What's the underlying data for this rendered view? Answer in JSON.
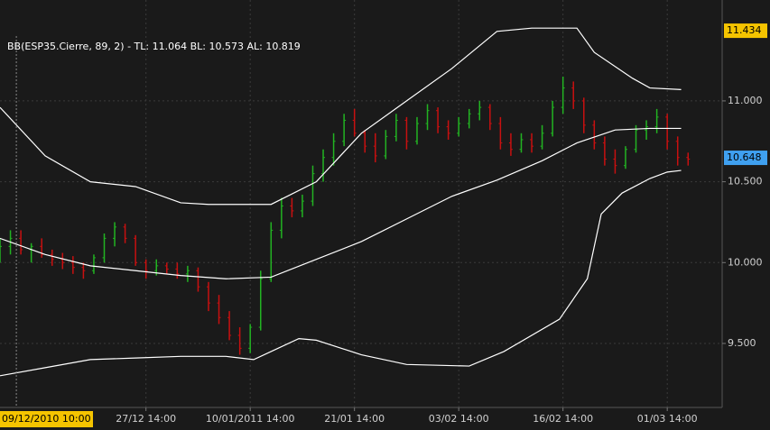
{
  "chart_data": {
    "type": "ohlc",
    "legend_text": "BB(ESP35.Cierre, 89, 2) -  TL: 11.064  BL: 10.573  AL: 10.819",
    "up_color": "#22b322",
    "down_color": "#c81010",
    "band_color": "#ffffff",
    "xlim": [
      0,
      207.8
    ],
    "ylim": [
      9.104,
      11.624
    ],
    "yticks": [
      {
        "value": 9.5,
        "label": "9.500"
      },
      {
        "value": 10,
        "label": "10.000"
      },
      {
        "value": 10.5,
        "label": "10.500"
      },
      {
        "value": 11,
        "label": "11.000"
      }
    ],
    "xticks": [
      {
        "value": 42,
        "label": "27/12 14:00"
      },
      {
        "value": 72,
        "label": "10/01/2011 14:00"
      },
      {
        "value": 102,
        "label": "21/01 14:00"
      },
      {
        "value": 132,
        "label": "03/02 14:00"
      },
      {
        "value": 162,
        "label": "16/02 14:00"
      },
      {
        "value": 192,
        "label": "01/03 14:00"
      }
    ],
    "cursor": {
      "x": 4.7,
      "label": "09/12/2010 10:00",
      "color": "#f5c400"
    },
    "markers": [
      {
        "value": 11.434,
        "color": "#f5c400"
      },
      {
        "value": 10.648,
        "color": "#3fa0f0"
      }
    ],
    "grid": true,
    "bars": {
      "x": [
        0,
        3,
        6,
        9,
        12,
        15,
        18,
        21,
        24,
        27,
        30,
        33,
        36,
        39,
        42,
        45,
        48,
        51,
        54,
        57,
        60,
        63,
        66,
        69,
        72,
        75,
        78,
        81,
        84,
        87,
        90,
        93,
        96,
        99,
        102,
        105,
        108,
        111,
        114,
        117,
        120,
        123,
        126,
        129,
        132,
        135,
        138,
        141,
        144,
        147,
        150,
        153,
        156,
        159,
        162,
        165,
        168,
        171,
        174,
        177,
        180,
        183,
        186,
        189,
        192,
        195,
        198
      ],
      "open": [
        10.05,
        10.1,
        10.15,
        10.08,
        10.1,
        10.05,
        10.02,
        10.0,
        9.97,
        9.95,
        10.03,
        10.15,
        10.22,
        10.15,
        10.0,
        9.95,
        9.98,
        9.96,
        9.93,
        9.95,
        9.85,
        9.75,
        9.66,
        9.55,
        9.47,
        9.6,
        9.9,
        10.2,
        10.35,
        10.32,
        10.38,
        10.55,
        10.65,
        10.75,
        10.88,
        10.8,
        10.72,
        10.66,
        10.78,
        10.88,
        10.75,
        10.86,
        10.94,
        10.84,
        10.8,
        10.86,
        10.92,
        10.96,
        10.86,
        10.74,
        10.7,
        10.76,
        10.72,
        10.8,
        10.96,
        11.08,
        11.0,
        10.85,
        10.74,
        10.64,
        10.6,
        10.7,
        10.82,
        10.84,
        10.9,
        10.75,
        10.65
      ],
      "high": [
        10.15,
        10.2,
        10.2,
        10.12,
        10.15,
        10.08,
        10.06,
        10.04,
        10.0,
        10.05,
        10.18,
        10.25,
        10.24,
        10.17,
        10.02,
        10.02,
        10.0,
        10.0,
        9.98,
        9.97,
        9.88,
        9.8,
        9.7,
        9.6,
        9.62,
        9.95,
        10.25,
        10.4,
        10.4,
        10.42,
        10.6,
        10.7,
        10.8,
        10.92,
        10.95,
        10.82,
        10.8,
        10.82,
        10.92,
        10.9,
        10.9,
        10.98,
        10.96,
        10.88,
        10.9,
        10.95,
        11.0,
        10.98,
        10.9,
        10.8,
        10.8,
        10.8,
        10.85,
        11.0,
        11.15,
        11.12,
        11.02,
        10.88,
        10.78,
        10.7,
        10.72,
        10.85,
        10.88,
        10.95,
        10.92,
        10.78,
        10.68
      ],
      "low": [
        10.0,
        10.05,
        10.05,
        10.0,
        10.03,
        9.98,
        9.96,
        9.93,
        9.9,
        9.93,
        10.0,
        10.1,
        10.12,
        9.98,
        9.9,
        9.92,
        9.93,
        9.9,
        9.88,
        9.82,
        9.7,
        9.62,
        9.52,
        9.43,
        9.44,
        9.58,
        9.88,
        10.15,
        10.28,
        10.28,
        10.35,
        10.5,
        10.6,
        10.72,
        10.78,
        10.68,
        10.62,
        10.64,
        10.75,
        10.7,
        10.73,
        10.82,
        10.8,
        10.76,
        10.78,
        10.83,
        10.88,
        10.82,
        10.7,
        10.66,
        10.68,
        10.68,
        10.7,
        10.78,
        10.92,
        10.95,
        10.8,
        10.7,
        10.6,
        10.55,
        10.58,
        10.68,
        10.76,
        10.8,
        10.7,
        10.6,
        10.6
      ],
      "close": [
        10.1,
        10.15,
        10.08,
        10.1,
        10.05,
        10.02,
        10.0,
        9.97,
        9.95,
        10.03,
        10.15,
        10.22,
        10.15,
        10.0,
        9.95,
        9.98,
        9.96,
        9.93,
        9.95,
        9.85,
        9.75,
        9.66,
        9.55,
        9.47,
        9.6,
        9.9,
        10.2,
        10.35,
        10.32,
        10.38,
        10.55,
        10.65,
        10.75,
        10.88,
        10.8,
        10.72,
        10.66,
        10.78,
        10.88,
        10.75,
        10.86,
        10.94,
        10.84,
        10.8,
        10.86,
        10.92,
        10.96,
        10.86,
        10.74,
        10.7,
        10.76,
        10.72,
        10.8,
        10.96,
        11.08,
        11.0,
        10.85,
        10.74,
        10.64,
        10.6,
        10.7,
        10.82,
        10.84,
        10.9,
        10.75,
        10.65,
        10.64
      ]
    },
    "bands": [
      {
        "x": [
          0,
          13,
          26,
          39,
          52,
          60,
          78,
          91,
          104,
          117,
          130,
          143,
          153,
          166,
          171,
          182,
          187,
          196
        ],
        "values": [
          10.96,
          10.66,
          10.5,
          10.47,
          10.37,
          10.36,
          10.36,
          10.5,
          10.8,
          11.0,
          11.2,
          11.43,
          11.45,
          11.45,
          11.3,
          11.14,
          11.08,
          11.07
        ]
      },
      {
        "x": [
          0,
          13,
          26,
          39,
          52,
          65,
          78,
          91,
          104,
          117,
          130,
          143,
          156,
          166,
          177,
          187,
          196
        ],
        "values": [
          10.15,
          10.05,
          9.98,
          9.95,
          9.92,
          9.9,
          9.91,
          10.02,
          10.13,
          10.27,
          10.41,
          10.51,
          10.63,
          10.74,
          10.82,
          10.83,
          10.83
        ]
      },
      {
        "x": [
          0,
          13,
          26,
          39,
          52,
          65,
          73,
          78,
          86,
          91,
          104,
          117,
          135,
          145,
          161,
          169,
          173,
          179,
          187,
          192,
          196
        ],
        "values": [
          9.3,
          9.35,
          9.4,
          9.41,
          9.42,
          9.42,
          9.4,
          9.45,
          9.53,
          9.52,
          9.43,
          9.37,
          9.36,
          9.45,
          9.65,
          9.9,
          10.3,
          10.43,
          10.52,
          10.56,
          10.57
        ]
      }
    ]
  }
}
